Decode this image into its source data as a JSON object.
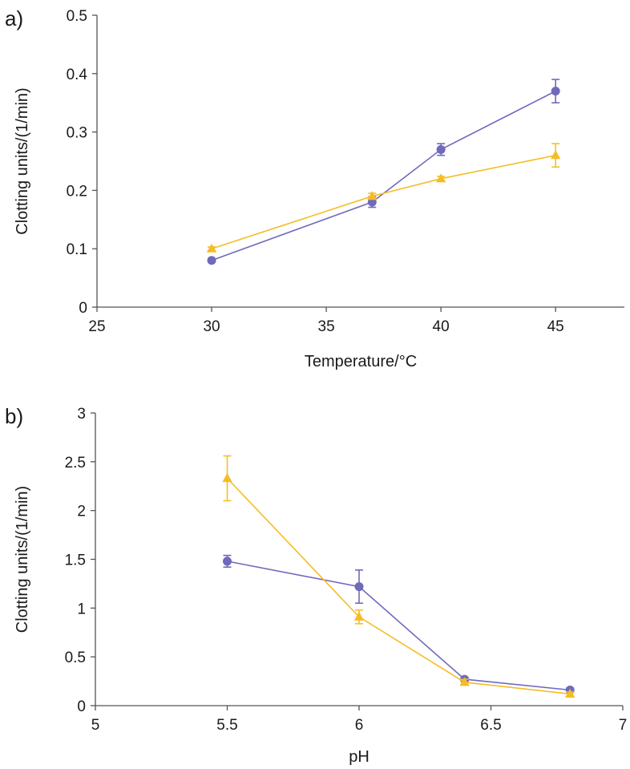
{
  "colors": {
    "series_circle": "#6f6abc",
    "series_triangle": "#f5bd25",
    "axis": "#555555",
    "text": "#1a1a1a"
  },
  "chart_data": [
    {
      "type": "line",
      "panel_label": "a)",
      "xlabel": "Temperature/°C",
      "ylabel": "Clotting units/(1/min)",
      "xlim": [
        25,
        48
      ],
      "ylim": [
        0,
        0.5
      ],
      "xticks": [
        25,
        30,
        35,
        40,
        45
      ],
      "xtick_labels": [
        "25",
        "30",
        "35",
        "40",
        "45"
      ],
      "yticks": [
        0,
        0.1,
        0.2,
        0.3,
        0.4,
        0.5
      ],
      "ytick_labels": [
        "0",
        "0.1",
        "0.2",
        "0.3",
        "0.4",
        "0.5"
      ],
      "series": [
        {
          "name": "circle series",
          "marker": "circle",
          "x": [
            30,
            37,
            40,
            45
          ],
          "y": [
            0.08,
            0.18,
            0.27,
            0.37
          ],
          "err": [
            0.003,
            0.009,
            0.01,
            0.02
          ]
        },
        {
          "name": "triangle series",
          "marker": "triangle",
          "x": [
            30,
            37,
            40,
            45
          ],
          "y": [
            0.1,
            0.19,
            0.22,
            0.26
          ],
          "err": [
            0.003,
            0.005,
            0.004,
            0.02
          ]
        }
      ]
    },
    {
      "type": "line",
      "panel_label": "b)",
      "xlabel": "pH",
      "ylabel": "Clotting units/(1/min)",
      "xlim": [
        5,
        7
      ],
      "ylim": [
        0,
        3
      ],
      "xticks": [
        5,
        5.5,
        6,
        6.5,
        7
      ],
      "xtick_labels": [
        "5",
        "5.5",
        "6",
        "6.5",
        "7"
      ],
      "yticks": [
        0,
        0.5,
        1,
        1.5,
        2,
        2.5,
        3
      ],
      "ytick_labels": [
        "0",
        "0.5",
        "1",
        "1.5",
        "2",
        "2.5",
        "3"
      ],
      "series": [
        {
          "name": "circle series",
          "marker": "circle",
          "x": [
            5.5,
            6.0,
            6.4,
            6.8
          ],
          "y": [
            1.48,
            1.22,
            0.27,
            0.16
          ],
          "err": [
            0.06,
            0.17,
            0.02,
            0.02
          ]
        },
        {
          "name": "triangle series",
          "marker": "triangle",
          "x": [
            5.5,
            6.0,
            6.4,
            6.8
          ],
          "y": [
            2.33,
            0.91,
            0.24,
            0.12
          ],
          "err": [
            0.23,
            0.07,
            0.03,
            0.02
          ]
        }
      ]
    }
  ]
}
